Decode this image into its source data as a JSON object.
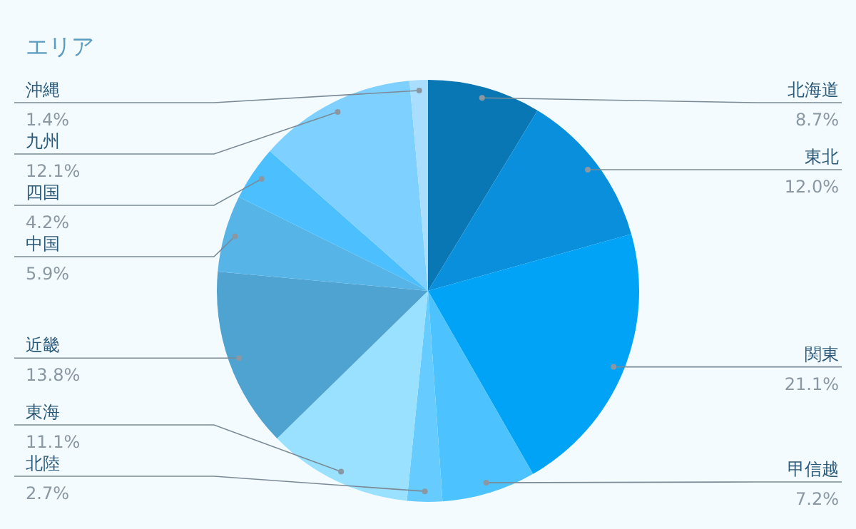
{
  "chart_data": {
    "type": "pie",
    "title": "エリア",
    "categories": [
      "北海道",
      "東北",
      "関東",
      "甲信越",
      "北陸",
      "東海",
      "近畿",
      "中国",
      "四国",
      "九州",
      "沖縄"
    ],
    "values": [
      8.7,
      12.0,
      21.1,
      7.2,
      2.7,
      11.1,
      13.8,
      5.9,
      4.2,
      12.1,
      1.4
    ],
    "value_labels": [
      "8.7%",
      "12.0%",
      "21.1%",
      "7.2%",
      "2.7%",
      "11.1%",
      "13.8%",
      "5.9%",
      "4.2%",
      "12.1%",
      "1.4%"
    ],
    "colors": [
      "#0a77b5",
      "#0a8fdc",
      "#00a3f5",
      "#4cc3ff",
      "#66ccff",
      "#99e1ff",
      "#4fa3d1",
      "#57b4e6",
      "#4cbfff",
      "#7dd0ff",
      "#a9deff"
    ]
  }
}
